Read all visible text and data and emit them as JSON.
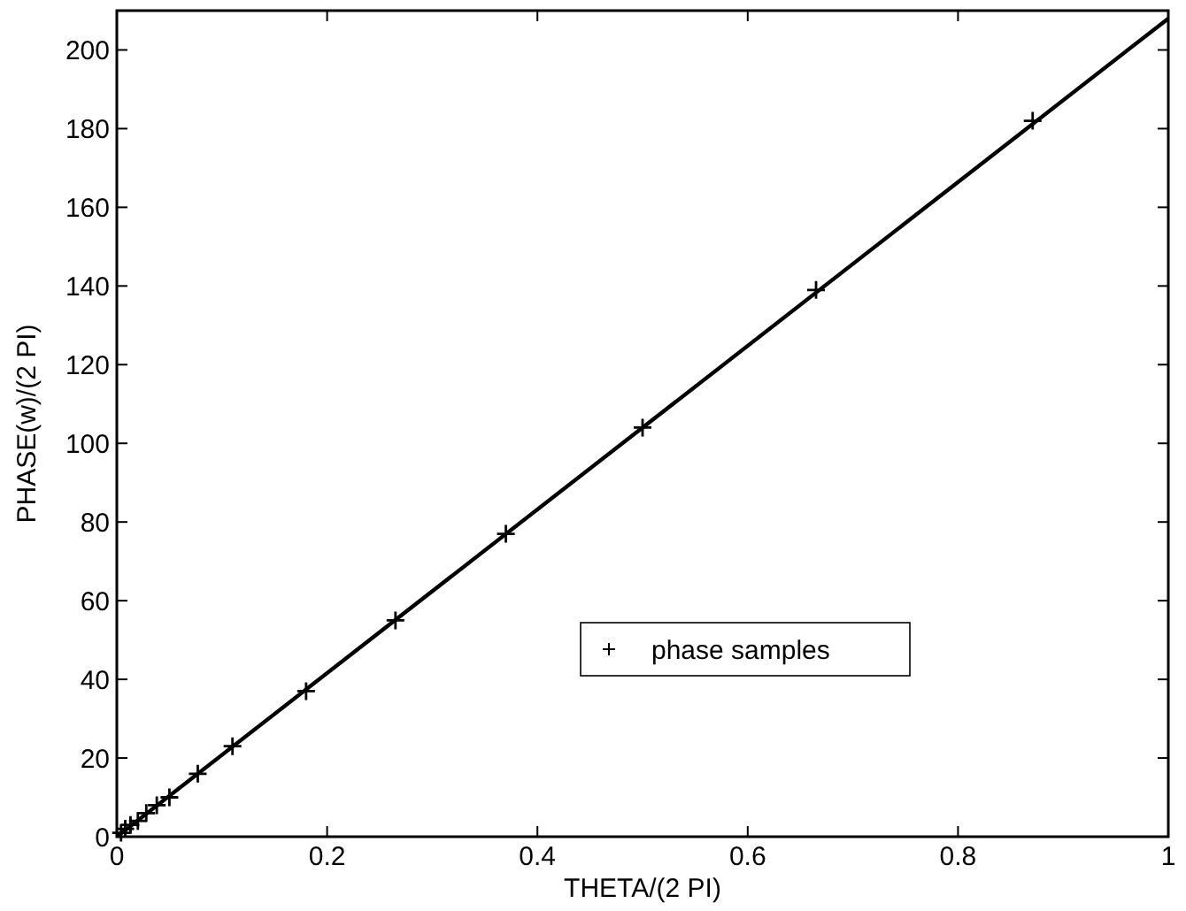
{
  "chart_data": {
    "type": "line",
    "xlabel": "THETA/(2 PI)",
    "ylabel": "PHASE(w)/(2 PI)",
    "xlim": [
      0,
      1
    ],
    "ylim": [
      0,
      210
    ],
    "xticks": [
      0,
      0.2,
      0.4,
      0.6,
      0.8,
      1
    ],
    "yticks": [
      0,
      20,
      40,
      60,
      80,
      100,
      120,
      140,
      160,
      180,
      200
    ],
    "grid": false,
    "legend": "bottom right",
    "series": [
      {
        "color": "#000000",
        "x": [
          0,
          1
        ],
        "values": [
          0,
          208
        ],
        "marker": "none",
        "line_style": "solid"
      },
      {
        "type": "scatter",
        "name": "phase samples",
        "color": "#000000",
        "marker": "cross",
        "x": [
          0.004,
          0.008,
          0.013,
          0.02,
          0.028,
          0.038,
          0.05,
          0.077,
          0.11,
          0.18,
          0.265,
          0.37,
          0.5,
          0.665,
          0.871
        ],
        "values": [
          1,
          2,
          3,
          4,
          6,
          8,
          10,
          16,
          23,
          37,
          55,
          77,
          104,
          139,
          182
        ]
      }
    ]
  }
}
